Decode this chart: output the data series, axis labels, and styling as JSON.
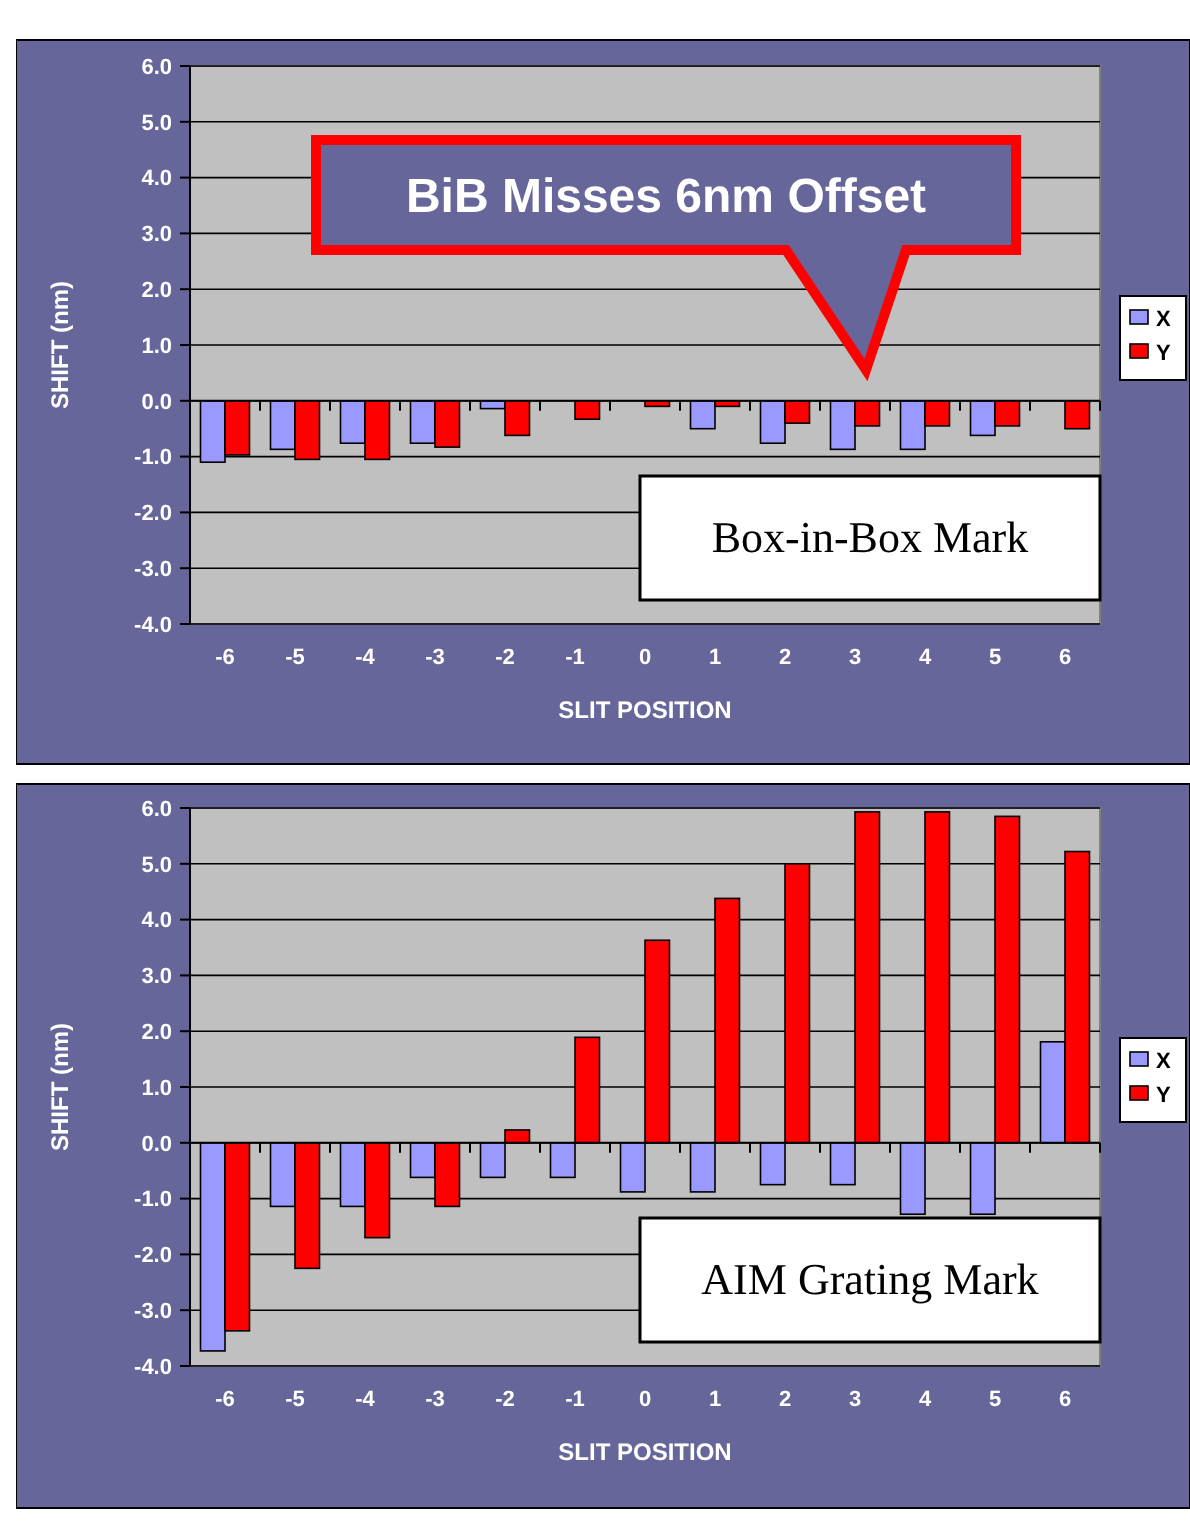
{
  "chart_data": [
    {
      "type": "bar",
      "xlabel": "SLIT POSITION",
      "ylabel": "SHIFT (nm)",
      "categories": [
        "-6",
        "-5",
        "-4",
        "-3",
        "-2",
        "-1",
        "0",
        "1",
        "2",
        "3",
        "4",
        "5",
        "6"
      ],
      "series": [
        {
          "name": "X",
          "color": "#9999ff",
          "values": [
            -1.1,
            -0.87,
            -0.76,
            -0.76,
            -0.14,
            0,
            0,
            -0.5,
            -0.76,
            -0.87,
            -0.87,
            -0.62,
            0
          ]
        },
        {
          "name": "Y",
          "color": "#ff0000",
          "values": [
            -0.97,
            -1.05,
            -1.05,
            -0.83,
            -0.62,
            -0.33,
            -0.1,
            -0.1,
            -0.4,
            -0.45,
            -0.45,
            -0.45,
            -0.5
          ]
        }
      ],
      "ylim": [
        -4,
        6
      ],
      "yticks": [
        {
          "value": -4,
          "label": "-4.0"
        },
        {
          "value": -3,
          "label": "-3.0"
        },
        {
          "value": -2,
          "label": "-2.0"
        },
        {
          "value": -1,
          "label": "-1.0"
        },
        {
          "value": 0,
          "label": "0.0"
        },
        {
          "value": 1,
          "label": "1.0"
        },
        {
          "value": 2,
          "label": "2.0"
        },
        {
          "value": 3,
          "label": "3.0"
        },
        {
          "value": 4,
          "label": "4.0"
        },
        {
          "value": 5,
          "label": "5.0"
        },
        {
          "value": 6,
          "label": "6.0"
        }
      ],
      "grid": "y",
      "legend": "right",
      "annotations": [
        "BiB Misses 6nm Offset",
        "Box-in-Box Mark"
      ]
    },
    {
      "type": "bar",
      "xlabel": "SLIT POSITION",
      "ylabel": "SHIFT (nm)",
      "categories": [
        "-6",
        "-5",
        "-4",
        "-3",
        "-2",
        "-1",
        "0",
        "1",
        "2",
        "3",
        "4",
        "5",
        "6"
      ],
      "series": [
        {
          "name": "X",
          "color": "#9999ff",
          "values": [
            -3.73,
            -1.14,
            -1.14,
            -0.62,
            -0.62,
            -0.62,
            -0.88,
            -0.88,
            -0.75,
            -0.75,
            -1.28,
            -1.28,
            1.81
          ]
        },
        {
          "name": "Y",
          "color": "#ff0000",
          "values": [
            -3.37,
            -2.25,
            -1.7,
            -1.14,
            0.23,
            1.89,
            3.63,
            4.38,
            5.0,
            5.93,
            5.93,
            5.85,
            5.22
          ]
        }
      ],
      "ylim": [
        -4,
        6
      ],
      "yticks": [
        {
          "value": -4,
          "label": "-4.0"
        },
        {
          "value": -3,
          "label": "-3.0"
        },
        {
          "value": -2,
          "label": "-2.0"
        },
        {
          "value": -1,
          "label": "-1.0"
        },
        {
          "value": 0,
          "label": "0.0"
        },
        {
          "value": 1,
          "label": "1.0"
        },
        {
          "value": 2,
          "label": "2.0"
        },
        {
          "value": 3,
          "label": "3.0"
        },
        {
          "value": 4,
          "label": "4.0"
        },
        {
          "value": 5,
          "label": "5.0"
        },
        {
          "value": 6,
          "label": "6.0"
        }
      ],
      "grid": "y",
      "legend": "right",
      "annotations": [
        "AIM Grating Mark"
      ]
    }
  ]
}
